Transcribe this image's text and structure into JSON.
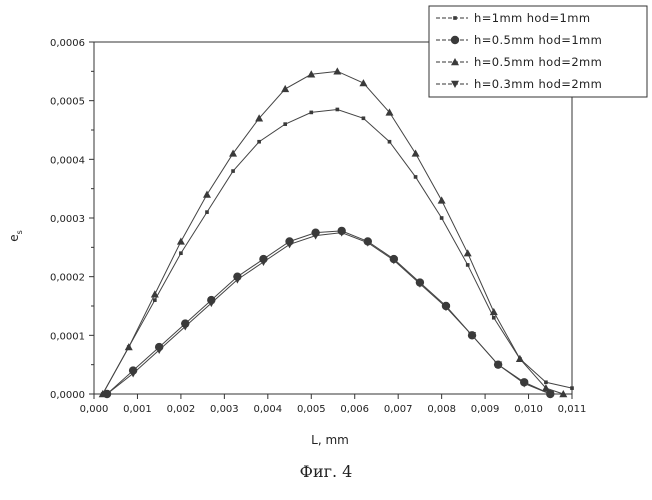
{
  "chart_data": {
    "type": "line",
    "xlabel": "L, mm",
    "ylabel": "e",
    "ylabel_sub": "s",
    "xlim": [
      0.0,
      0.011
    ],
    "ylim": [
      0.0,
      0.0006
    ],
    "xticks": [
      "0,000",
      "0,001",
      "0,002",
      "0,003",
      "0,004",
      "0,005",
      "0,006",
      "0,007",
      "0,008",
      "0,009",
      "0,010",
      "0,011"
    ],
    "yticks": [
      "0,0000",
      "0,0001",
      "0,0002",
      "0,0003",
      "0,0004",
      "0,0005",
      "0,0006"
    ],
    "legend_position": "top-right",
    "grid": false,
    "series": [
      {
        "name": "h=1mm hod=1mm",
        "marker": "square",
        "x": [
          0.0002,
          0.0008,
          0.0014,
          0.002,
          0.0026,
          0.0032,
          0.0038,
          0.0044,
          0.005,
          0.0056,
          0.0062,
          0.0068,
          0.0074,
          0.008,
          0.0086,
          0.0092,
          0.0098,
          0.0104,
          0.011
        ],
        "y": [
          0.0,
          8e-05,
          0.00016,
          0.00024,
          0.00031,
          0.00038,
          0.00043,
          0.00046,
          0.00048,
          0.000485,
          0.00047,
          0.00043,
          0.00037,
          0.0003,
          0.00022,
          0.00013,
          6e-05,
          2e-05,
          1e-05
        ]
      },
      {
        "name": "h=0.5mm hod=1mm",
        "marker": "circle",
        "x": [
          0.0003,
          0.0009,
          0.0015,
          0.0021,
          0.0027,
          0.0033,
          0.0039,
          0.0045,
          0.0051,
          0.0057,
          0.0063,
          0.0069,
          0.0075,
          0.0081,
          0.0087,
          0.0093,
          0.0099,
          0.0105
        ],
        "y": [
          0.0,
          4e-05,
          8e-05,
          0.00012,
          0.00016,
          0.0002,
          0.00023,
          0.00026,
          0.000275,
          0.000278,
          0.00026,
          0.00023,
          0.00019,
          0.00015,
          0.0001,
          5e-05,
          2e-05,
          0.0
        ]
      },
      {
        "name": "h=0.5mm hod=2mm",
        "marker": "triangle-up",
        "x": [
          0.0002,
          0.0008,
          0.0014,
          0.002,
          0.0026,
          0.0032,
          0.0038,
          0.0044,
          0.005,
          0.0056,
          0.0062,
          0.0068,
          0.0074,
          0.008,
          0.0086,
          0.0092,
          0.0098,
          0.0104,
          0.0108
        ],
        "y": [
          0.0,
          8e-05,
          0.00017,
          0.00026,
          0.00034,
          0.00041,
          0.00047,
          0.00052,
          0.000545,
          0.00055,
          0.00053,
          0.00048,
          0.00041,
          0.00033,
          0.00024,
          0.00014,
          6e-05,
          1e-05,
          0.0
        ]
      },
      {
        "name": "h=0.3mm hod=2mm",
        "marker": "triangle-down",
        "x": [
          0.0003,
          0.0009,
          0.0015,
          0.0021,
          0.0027,
          0.0033,
          0.0039,
          0.0045,
          0.0051,
          0.0057,
          0.0063,
          0.0069,
          0.0075,
          0.0081,
          0.0087,
          0.0093,
          0.0099,
          0.0105
        ],
        "y": [
          0.0,
          3.5e-05,
          7.5e-05,
          0.000115,
          0.000155,
          0.000195,
          0.000225,
          0.000255,
          0.00027,
          0.000275,
          0.000258,
          0.000228,
          0.000188,
          0.000148,
          0.0001,
          5e-05,
          1.8e-05,
          0.0
        ]
      }
    ]
  },
  "caption": "Фиг. 4"
}
